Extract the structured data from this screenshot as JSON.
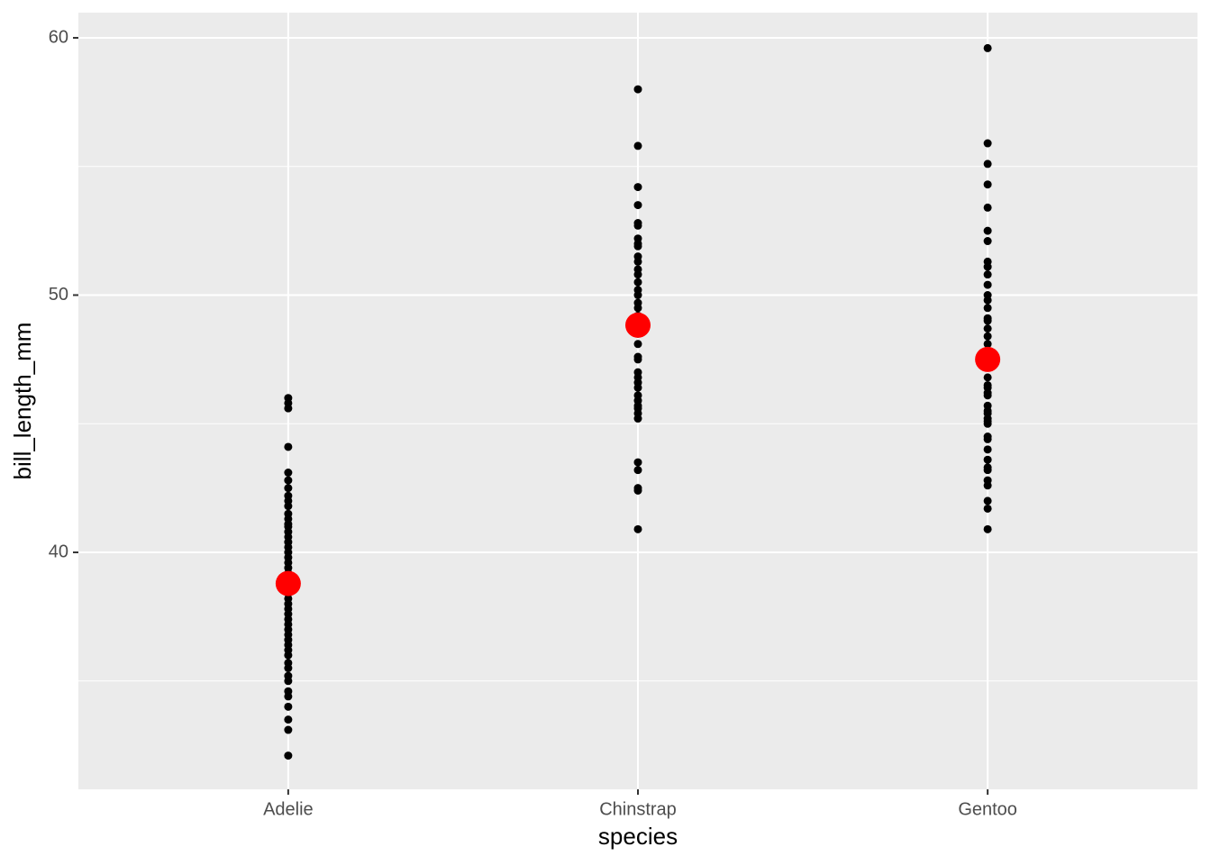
{
  "chart_data": {
    "type": "strip",
    "x_label": "species",
    "y_label": "bill_length_mm",
    "categories": [
      "Adelie",
      "Chinstrap",
      "Gentoo"
    ],
    "ylim": [
      30.79,
      60.98
    ],
    "yticks": [
      40,
      50,
      60
    ],
    "minor_yticks": [
      35,
      45,
      55
    ],
    "grid": true,
    "point_color": "#000000",
    "mean_color": "#ff0000",
    "groups": [
      {
        "values": [
          32.1,
          33.1,
          33.5,
          34.0,
          34.4,
          34.6,
          35.0,
          35.2,
          35.5,
          35.7,
          36.0,
          36.2,
          36.4,
          36.6,
          36.8,
          37.0,
          37.2,
          37.4,
          37.6,
          37.8,
          38.0,
          38.2,
          38.4,
          38.6,
          38.8,
          39.0,
          39.2,
          39.4,
          39.6,
          39.8,
          40.0,
          40.2,
          40.4,
          40.6,
          40.8,
          41.0,
          41.1,
          41.3,
          41.5,
          41.8,
          42.0,
          42.2,
          42.5,
          42.8,
          43.1,
          44.1,
          45.6,
          45.8,
          46.0
        ]
      },
      {
        "values": [
          40.9,
          42.4,
          42.5,
          43.2,
          43.5,
          45.2,
          45.4,
          45.6,
          45.7,
          45.9,
          46.1,
          46.4,
          46.6,
          46.8,
          47.0,
          47.5,
          47.6,
          48.1,
          48.5,
          49.0,
          49.2,
          49.5,
          49.7,
          50.0,
          50.2,
          50.5,
          50.8,
          51.0,
          51.3,
          51.5,
          51.9,
          52.0,
          52.2,
          52.7,
          52.8,
          53.5,
          54.2,
          55.8,
          58.0
        ]
      },
      {
        "values": [
          40.9,
          41.7,
          42.0,
          42.6,
          42.8,
          43.2,
          43.3,
          43.6,
          44.0,
          44.4,
          44.5,
          45.0,
          45.1,
          45.2,
          45.4,
          45.5,
          45.7,
          46.1,
          46.2,
          46.4,
          46.5,
          46.8,
          47.2,
          47.5,
          47.8,
          48.1,
          48.4,
          48.7,
          49.0,
          49.1,
          49.5,
          49.8,
          50.0,
          50.4,
          50.8,
          51.1,
          51.3,
          52.1,
          52.5,
          53.4,
          54.3,
          55.1,
          55.9,
          59.6
        ]
      }
    ],
    "means": [
      38.79,
      48.83,
      47.5
    ]
  }
}
